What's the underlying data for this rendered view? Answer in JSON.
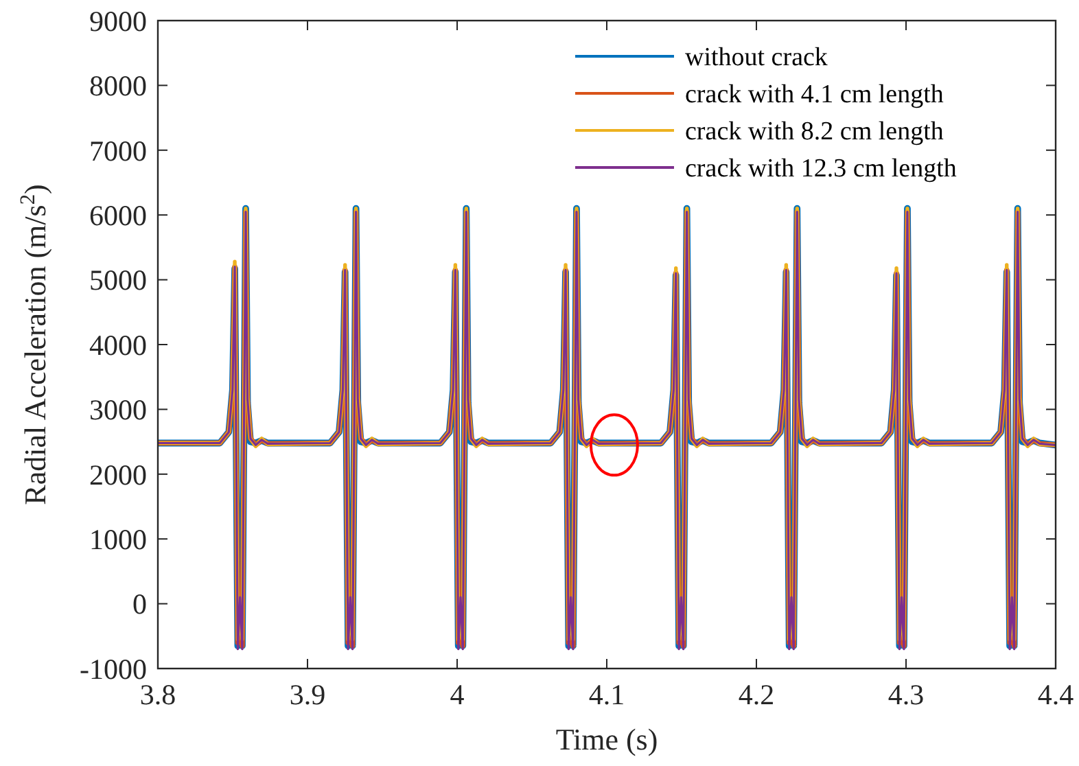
{
  "chart_data": {
    "type": "line",
    "xlabel": "Time (s)",
    "ylabel": "Radial Acceleration (m/s$^{2}$)",
    "xlim": [
      3.8,
      4.4
    ],
    "ylim": [
      -1000,
      9000
    ],
    "xticks": [
      3.8,
      3.9,
      4,
      4.1,
      4.2,
      4.3,
      4.4
    ],
    "yticks": [
      -1000,
      0,
      1000,
      2000,
      3000,
      4000,
      5000,
      6000,
      7000,
      8000,
      9000
    ],
    "grid": false,
    "legend": "top right",
    "line_style": "solid",
    "marker": "none",
    "x": [
      3.8,
      3.8414,
      3.8474,
      3.8499,
      3.8514,
      3.8534,
      3.8549,
      3.8564,
      3.8587,
      3.8599,
      3.8619,
      3.8654,
      3.8694,
      3.8734,
      3.9151,
      3.9211,
      3.9236,
      3.9251,
      3.9271,
      3.9286,
      3.9301,
      3.9324,
      3.9336,
      3.9356,
      3.9391,
      3.9431,
      3.9471,
      3.9888,
      3.9948,
      3.9973,
      3.9988,
      4.0008,
      4.0023,
      4.0038,
      4.0061,
      4.0073,
      4.0093,
      4.0128,
      4.0168,
      4.0208,
      4.0625,
      4.0685,
      4.071,
      4.0725,
      4.0745,
      4.076,
      4.0775,
      4.0798,
      4.081,
      4.083,
      4.0865,
      4.0905,
      4.0945,
      4.1362,
      4.1422,
      4.1447,
      4.1462,
      4.1482,
      4.1497,
      4.1512,
      4.1535,
      4.1547,
      4.1567,
      4.1602,
      4.1642,
      4.1682,
      4.2099,
      4.2159,
      4.2184,
      4.2199,
      4.2219,
      4.2234,
      4.2249,
      4.2272,
      4.2284,
      4.2304,
      4.2339,
      4.2379,
      4.2419,
      4.2836,
      4.2896,
      4.2921,
      4.2936,
      4.2956,
      4.2971,
      4.2986,
      4.3009,
      4.3021,
      4.3041,
      4.3076,
      4.3116,
      4.3156,
      4.3573,
      4.3633,
      4.3658,
      4.3673,
      4.3693,
      4.3708,
      4.3723,
      4.3746,
      4.3758,
      4.3778,
      4.3813,
      4.3853,
      4.3893,
      4.4
    ],
    "series": [
      {
        "name": "without crack",
        "color": "#0072bd",
        "values": [
          2480,
          2480,
          2650,
          3300,
          5170,
          -650,
          250,
          -650,
          6100,
          3100,
          2500,
          2480,
          2520,
          2480,
          2480,
          2650,
          3300,
          5120,
          -650,
          250,
          -650,
          6100,
          3100,
          2500,
          2480,
          2520,
          2480,
          2480,
          2650,
          3300,
          5120,
          -650,
          250,
          -650,
          6100,
          3100,
          2500,
          2480,
          2520,
          2480,
          2480,
          2650,
          3300,
          5120,
          -650,
          250,
          -650,
          6100,
          3100,
          2500,
          2480,
          2520,
          2480,
          2480,
          2650,
          3300,
          5070,
          -650,
          250,
          -650,
          6100,
          3100,
          2500,
          2480,
          2520,
          2480,
          2480,
          2650,
          3300,
          5120,
          -650,
          250,
          -650,
          6100,
          3100,
          2500,
          2480,
          2520,
          2480,
          2480,
          2650,
          3300,
          5070,
          -650,
          250,
          -650,
          6100,
          3100,
          2500,
          2480,
          2520,
          2480,
          2480,
          2650,
          3300,
          5120,
          -650,
          250,
          -650,
          6100,
          3100,
          2500,
          2480,
          2520,
          2480,
          2450
        ]
      },
      {
        "name": "crack with 4.1 cm length",
        "color": "#d95319",
        "values": [
          2480,
          2480,
          2650,
          3300,
          5200,
          -600,
          0,
          -650,
          6050,
          3150,
          2550,
          2450,
          2530,
          2470,
          2480,
          2650,
          3300,
          5150,
          -600,
          0,
          -650,
          6050,
          3150,
          2550,
          2450,
          2530,
          2470,
          2480,
          2650,
          3300,
          5150,
          -600,
          0,
          -650,
          6050,
          3150,
          2550,
          2450,
          2530,
          2470,
          2480,
          2650,
          3300,
          5150,
          -600,
          0,
          -650,
          6050,
          3150,
          2550,
          2450,
          2530,
          2470,
          2480,
          2650,
          3300,
          5100,
          -600,
          0,
          -650,
          6050,
          3150,
          2550,
          2450,
          2530,
          2470,
          2480,
          2650,
          3300,
          5150,
          -600,
          0,
          -650,
          6050,
          3150,
          2550,
          2450,
          2530,
          2470,
          2480,
          2650,
          3300,
          5100,
          -600,
          0,
          -650,
          6050,
          3150,
          2550,
          2450,
          2530,
          2470,
          2480,
          2650,
          3300,
          5150,
          -600,
          0,
          -650,
          6050,
          3150,
          2550,
          2450,
          2530,
          2470,
          2450
        ]
      },
      {
        "name": "crack with 8.2 cm length",
        "color": "#edb120",
        "values": [
          2480,
          2480,
          2650,
          3300,
          5280,
          -550,
          -100,
          -550,
          6100,
          3200,
          2550,
          2430,
          2550,
          2460,
          2480,
          2650,
          3300,
          5230,
          -550,
          -100,
          -550,
          6100,
          3200,
          2550,
          2430,
          2550,
          2460,
          2480,
          2650,
          3300,
          5230,
          -550,
          -100,
          -550,
          6100,
          3200,
          2550,
          2430,
          2550,
          2460,
          2480,
          2650,
          3300,
          5230,
          -550,
          -100,
          -550,
          6100,
          3200,
          2550,
          2430,
          2550,
          2460,
          2480,
          2650,
          3300,
          5180,
          -550,
          -100,
          -550,
          6100,
          3200,
          2550,
          2430,
          2550,
          2460,
          2480,
          2650,
          3300,
          5230,
          -550,
          -100,
          -550,
          6100,
          3200,
          2550,
          2430,
          2550,
          2460,
          2480,
          2650,
          3300,
          5180,
          -550,
          -100,
          -550,
          6100,
          3200,
          2550,
          2430,
          2550,
          2460,
          2480,
          2650,
          3300,
          5230,
          -550,
          -100,
          -550,
          6100,
          3200,
          2550,
          2430,
          2550,
          2460,
          2450
        ]
      },
      {
        "name": "crack with 12.3 cm length",
        "color": "#7e2f8e",
        "values": [
          2480,
          2480,
          2650,
          3300,
          5200,
          -700,
          100,
          -700,
          6050,
          3150,
          2550,
          2450,
          2530,
          2470,
          2480,
          2650,
          3300,
          5150,
          -700,
          100,
          -700,
          6050,
          3150,
          2550,
          2450,
          2530,
          2470,
          2480,
          2650,
          3300,
          5150,
          -700,
          100,
          -700,
          6050,
          3150,
          2550,
          2450,
          2530,
          2470,
          2480,
          2650,
          3300,
          5150,
          -700,
          100,
          -700,
          6050,
          3150,
          2550,
          2450,
          2530,
          2470,
          2480,
          2650,
          3300,
          5100,
          -700,
          100,
          -700,
          6050,
          3150,
          2550,
          2450,
          2530,
          2470,
          2480,
          2650,
          3300,
          5150,
          -700,
          100,
          -700,
          6050,
          3150,
          2550,
          2450,
          2530,
          2470,
          2480,
          2650,
          3300,
          5100,
          -700,
          100,
          -700,
          6050,
          3150,
          2550,
          2450,
          2530,
          2470,
          2480,
          2650,
          3300,
          5150,
          -700,
          100,
          -700,
          6050,
          3150,
          2550,
          2450,
          2530,
          2470,
          2450
        ]
      }
    ]
  }
}
